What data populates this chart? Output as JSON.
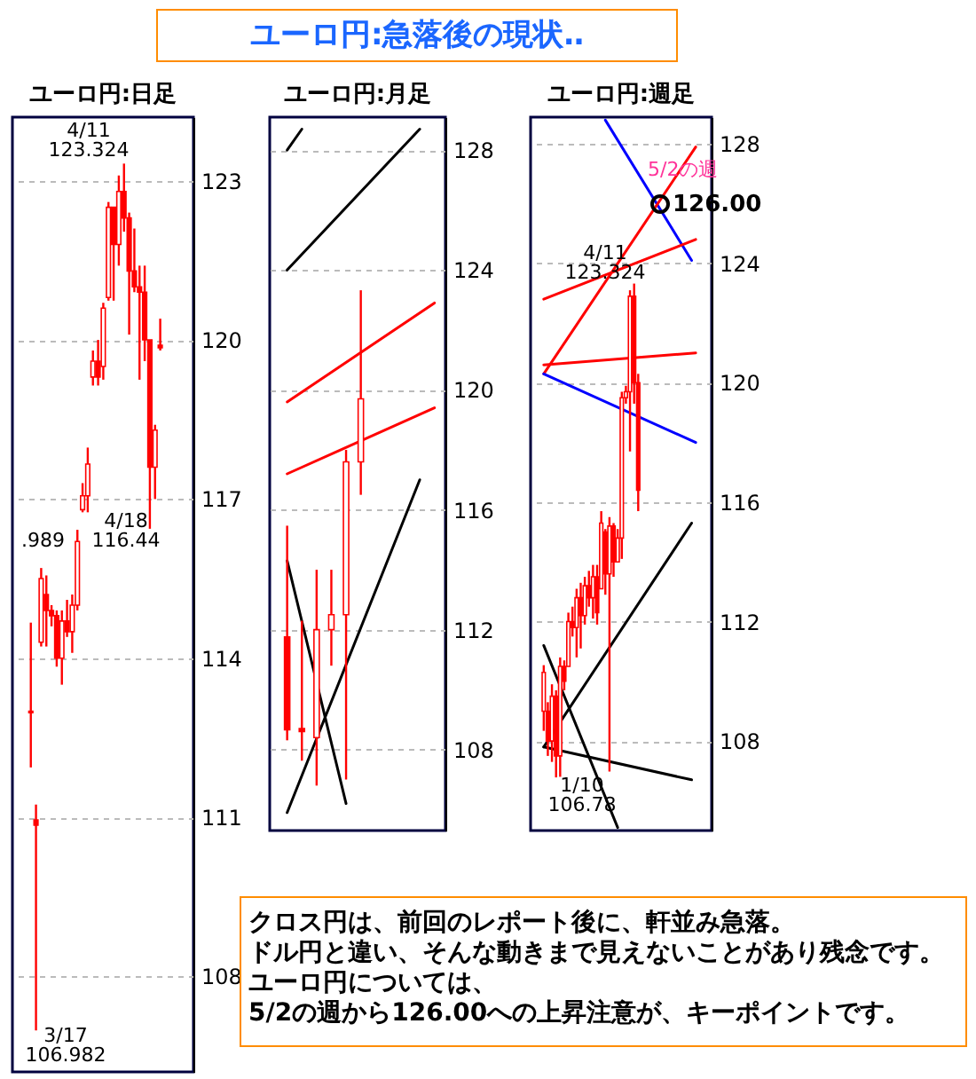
{
  "chart_data": [
    {
      "type": "other",
      "title": "ユーロ円:急落後の現状‥"
    },
    {
      "type": "candlestick",
      "title": "ユーロ円:日足",
      "color": "#ff0000",
      "ylim": [
        106.2,
        124.2
      ],
      "yticks": [
        108,
        111,
        114,
        117,
        120,
        123
      ],
      "grid": "y",
      "tick_labels": "y",
      "categories": [
        null,
        null,
        null,
        null,
        null,
        null,
        null,
        null,
        null,
        null,
        null,
        null,
        null,
        null,
        null,
        null,
        null,
        null,
        null,
        null,
        null,
        null,
        null,
        null,
        null,
        null
      ],
      "ohlc": [
        [
          113.0,
          114.67,
          111.94,
          112.97
        ],
        [
          110.95,
          111.24,
          106.982,
          110.85
        ],
        [
          114.3,
          115.7,
          114.22,
          115.5
        ],
        [
          115.2,
          115.56,
          114.22,
          114.9
        ],
        [
          114.9,
          115.0,
          114.6,
          114.8
        ],
        [
          114.8,
          114.9,
          113.84,
          114.0
        ],
        [
          114.0,
          114.9,
          113.5,
          114.7
        ],
        [
          114.7,
          115.1,
          114.4,
          114.5
        ],
        [
          114.5,
          115.2,
          114.1,
          115.0
        ],
        [
          115.0,
          116.42,
          114.9,
          116.2
        ],
        [
          116.8,
          117.3,
          116.75,
          117.06
        ],
        [
          117.06,
          117.97,
          116.75,
          117.66
        ],
        [
          119.3,
          119.8,
          119.14,
          119.6
        ],
        [
          119.6,
          120.0,
          119.14,
          119.3
        ],
        [
          119.5,
          120.7,
          119.25,
          120.6
        ],
        [
          120.8,
          122.6,
          120.74,
          122.5
        ],
        [
          122.5,
          122.5,
          120.74,
          121.8
        ],
        [
          121.8,
          123.1,
          121.4,
          122.8
        ],
        [
          122.8,
          123.324,
          122.04,
          122.3
        ],
        [
          122.3,
          122.4,
          120.1,
          121.3
        ],
        [
          121.3,
          122.1,
          120.9,
          121.0
        ],
        [
          121.0,
          121.4,
          119.25,
          120.9
        ],
        [
          120.9,
          121.4,
          119.6,
          120.0
        ],
        [
          120.0,
          120.0,
          116.44,
          117.6
        ],
        [
          117.6,
          118.4,
          117.0,
          118.3
        ],
        [
          119.9,
          120.4,
          119.8,
          119.85
        ]
      ],
      "annotations": [
        "4/11\n123.324",
        ".989",
        "4/18\n116.44",
        "3/17\n106.982"
      ]
    },
    {
      "type": "candlestick",
      "title": "ユーロ円:月足",
      "color": "#ff0000",
      "ylim": [
        105.3,
        129.1
      ],
      "yticks": [
        108,
        112,
        116,
        120,
        124,
        128
      ],
      "grid": "y",
      "tick_labels": "y",
      "categories": [
        null,
        null,
        null,
        null,
        null,
        null,
        null,
        null,
        null,
        null,
        null
      ],
      "ohlc": [
        [
          111.76,
          115.47,
          108.31,
          108.66
        ],
        [
          108.7,
          112.3,
          107.63,
          108.6
        ],
        [
          108.4,
          114.0,
          106.8,
          112.0
        ],
        [
          112.0,
          114.0,
          110.8,
          112.5
        ],
        [
          112.5,
          118.0,
          107.0,
          117.6
        ],
        [
          117.6,
          123.324,
          116.5,
          119.7
        ],
        null,
        null,
        null,
        null,
        null
      ],
      "series": [
        {
          "type": "line",
          "color": "#ff0000",
          "values": [
            119.6,
            null,
            null,
            null,
            null,
            null,
            null,
            null,
            null,
            null,
            122.9
          ]
        },
        {
          "type": "line",
          "color": "#ff0000",
          "values": [
            117.2,
            null,
            null,
            null,
            null,
            null,
            null,
            null,
            null,
            null,
            119.4
          ]
        },
        {
          "type": "line",
          "color": "#000000",
          "values": [
            128.0,
            128.7,
            null,
            null,
            null,
            null,
            null,
            null,
            null,
            null,
            null
          ]
        },
        {
          "type": "line",
          "color": "#000000",
          "values": [
            124.0,
            null,
            null,
            null,
            null,
            null,
            null,
            null,
            null,
            128.7,
            null
          ]
        },
        {
          "type": "line",
          "color": "#000000",
          "values": [
            105.9,
            null,
            null,
            null,
            null,
            null,
            null,
            null,
            null,
            117.0,
            null
          ]
        },
        {
          "type": "line",
          "color": "#000000",
          "values": [
            114.3,
            null,
            null,
            null,
            106.2,
            null,
            null,
            null,
            null,
            null,
            null
          ]
        }
      ]
    },
    {
      "type": "candlestick",
      "title": "ユーロ円:週足",
      "color": "#ff0000",
      "ylim": [
        105.0,
        128.9
      ],
      "yticks": [
        108,
        112,
        116,
        120,
        124,
        128
      ],
      "grid": "y",
      "tick_labels": "y",
      "categories": [
        null,
        null,
        null,
        null,
        null,
        null,
        null,
        null,
        null,
        null,
        null,
        null,
        null,
        null,
        null,
        null,
        null,
        null,
        null,
        null,
        null,
        null,
        null,
        null,
        null,
        null,
        null,
        null,
        null,
        null,
        null,
        null,
        null,
        null,
        null,
        null,
        null,
        null
      ],
      "ohlc": [
        [
          109.0,
          110.54,
          108.34,
          110.3
        ],
        [
          109.0,
          109.3,
          107.5,
          108.0
        ],
        [
          108.0,
          109.9,
          107.3,
          109.5
        ],
        [
          109.5,
          109.7,
          106.78,
          107.5
        ],
        [
          107.5,
          110.8,
          106.8,
          110.5
        ],
        [
          110.5,
          110.7,
          109.7,
          110.0
        ],
        [
          110.5,
          112.3,
          110.5,
          112.0
        ],
        [
          112.0,
          112.5,
          111.5,
          111.8
        ],
        [
          111.8,
          113.1,
          110.8,
          112.8
        ],
        [
          112.8,
          113.3,
          111.1,
          112.2
        ],
        [
          112.2,
          113.5,
          111.9,
          113.2
        ],
        [
          113.2,
          113.7,
          112.5,
          112.8
        ],
        [
          112.8,
          113.9,
          112.1,
          113.5
        ],
        [
          113.5,
          113.9,
          111.9,
          112.3
        ],
        [
          113.1,
          115.7,
          113.1,
          115.3
        ],
        [
          115.0,
          115.1,
          112.9,
          113.6
        ],
        [
          113.6,
          115.5,
          106.98,
          115.2
        ],
        [
          115.2,
          115.3,
          113.5,
          114.0
        ],
        [
          114.0,
          115.1,
          114.0,
          114.8
        ],
        [
          114.8,
          119.7,
          114.1,
          119.5
        ],
        [
          119.5,
          119.9,
          119.3,
          119.7
        ],
        [
          119.7,
          123.1,
          117.7,
          122.9
        ],
        [
          122.9,
          123.324,
          119.3,
          120.0
        ],
        [
          120.0,
          120.3,
          115.7,
          116.4
        ],
        null,
        null,
        null,
        null,
        null,
        null,
        null,
        null,
        null,
        null,
        null,
        null,
        null,
        null
      ],
      "series": [
        {
          "type": "line",
          "color": "#0000ff",
          "values": [
            null,
            null,
            null,
            null,
            null,
            null,
            null,
            null,
            null,
            null,
            null,
            null,
            null,
            null,
            null,
            128.8,
            null,
            null,
            null,
            null,
            null,
            null,
            null,
            null,
            null,
            null,
            null,
            null,
            null,
            null,
            null,
            null,
            null,
            null,
            null,
            null,
            124.1,
            null
          ]
        },
        {
          "type": "line",
          "color": "#ff0000",
          "values": [
            120.3,
            null,
            null,
            null,
            null,
            null,
            null,
            null,
            null,
            null,
            null,
            null,
            null,
            null,
            null,
            null,
            null,
            null,
            null,
            null,
            null,
            null,
            null,
            null,
            null,
            null,
            null,
            null,
            null,
            null,
            null,
            null,
            null,
            null,
            null,
            null,
            null,
            127.9
          ]
        },
        {
          "type": "line",
          "color": "#ff0000",
          "values": [
            122.8,
            null,
            null,
            null,
            null,
            null,
            null,
            null,
            null,
            null,
            null,
            null,
            null,
            null,
            null,
            null,
            null,
            null,
            null,
            null,
            null,
            null,
            null,
            null,
            null,
            null,
            null,
            null,
            null,
            null,
            null,
            null,
            null,
            null,
            null,
            null,
            null,
            124.8
          ]
        },
        {
          "type": "line",
          "color": "#ff0000",
          "values": [
            120.6,
            null,
            null,
            null,
            null,
            null,
            null,
            null,
            null,
            null,
            null,
            null,
            null,
            null,
            null,
            null,
            null,
            null,
            null,
            null,
            null,
            null,
            null,
            null,
            null,
            null,
            null,
            null,
            null,
            null,
            null,
            null,
            null,
            null,
            null,
            null,
            null,
            121.0
          ]
        },
        {
          "type": "line",
          "color": "#0000ff",
          "values": [
            120.3,
            null,
            null,
            null,
            null,
            null,
            null,
            null,
            null,
            null,
            null,
            null,
            null,
            null,
            null,
            null,
            null,
            null,
            null,
            null,
            null,
            null,
            null,
            null,
            null,
            null,
            null,
            null,
            null,
            null,
            null,
            null,
            null,
            null,
            null,
            null,
            null,
            118.0
          ]
        },
        {
          "type": "line",
          "color": "#000000",
          "values": [
            107.8,
            null,
            null,
            null,
            null,
            null,
            null,
            null,
            null,
            null,
            null,
            null,
            null,
            null,
            null,
            null,
            null,
            null,
            null,
            null,
            null,
            null,
            null,
            null,
            null,
            null,
            null,
            null,
            null,
            null,
            null,
            null,
            null,
            null,
            null,
            null,
            115.3,
            null
          ]
        },
        {
          "type": "line",
          "color": "#000000",
          "values": [
            111.2,
            null,
            null,
            null,
            null,
            null,
            null,
            null,
            null,
            null,
            null,
            null,
            null,
            null,
            null,
            null,
            null,
            null,
            105.1,
            null,
            null,
            null,
            null,
            null,
            null,
            null,
            null,
            null,
            null,
            null,
            null,
            null,
            null,
            null,
            null,
            null,
            null,
            null
          ]
        },
        {
          "type": "line",
          "color": "#000000",
          "values": [
            107.8,
            null,
            null,
            null,
            null,
            null,
            null,
            null,
            null,
            null,
            null,
            null,
            null,
            null,
            null,
            null,
            null,
            null,
            null,
            null,
            null,
            null,
            null,
            null,
            null,
            null,
            null,
            null,
            null,
            null,
            null,
            null,
            null,
            null,
            null,
            null,
            106.7,
            null
          ]
        }
      ],
      "annotations": [
        "4/11\n123.324",
        "1/10\n106.78",
        "5/2の週",
        "126.00"
      ]
    },
    {
      "type": "other",
      "annotations": [
        "クロス円は、前回のレポート後に、軒並み急落。",
        "ドル円と違い、そんな動きまで見えないことがあり残念です。",
        "ユーロ円については、",
        "5/2の週から126.00への上昇注意が、キーポイントです。"
      ]
    }
  ]
}
